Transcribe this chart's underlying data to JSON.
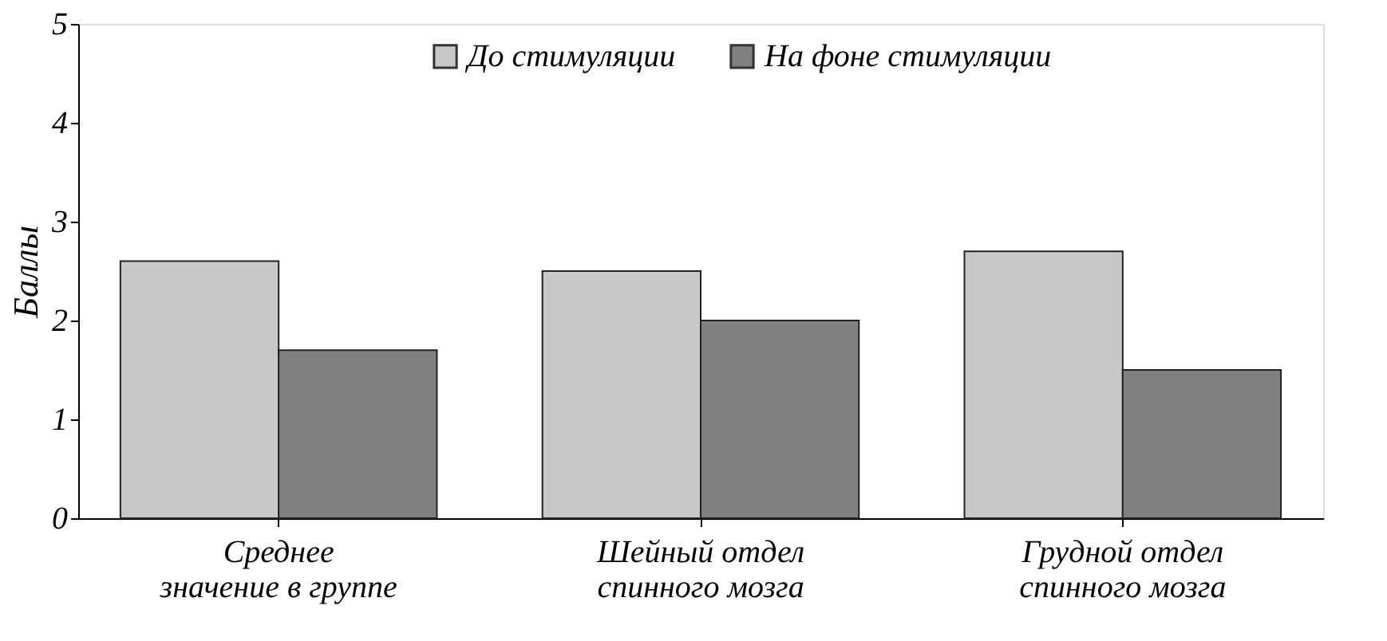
{
  "chart_data": {
    "type": "bar",
    "ylabel": "Баллы",
    "categories": [
      "Среднее\nзначение в группе",
      "Шейный отдел\nспинного мозга",
      "Грудной отдел\nспинного мозга"
    ],
    "series": [
      {
        "name": "До стимуляции",
        "color": "#c8c8c8",
        "values": [
          2.6,
          2.5,
          2.7
        ]
      },
      {
        "name": "На фоне стимуляции",
        "color": "#808080",
        "values": [
          1.7,
          2.0,
          1.5
        ]
      }
    ],
    "ylim": [
      0,
      5
    ],
    "yticks": [
      0,
      1,
      2,
      3,
      4,
      5
    ],
    "grid": false,
    "legend": "top"
  }
}
